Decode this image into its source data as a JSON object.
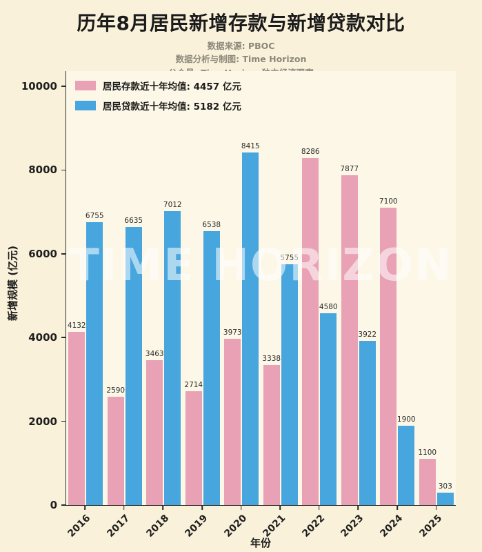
{
  "title": "历年8月居民新增存款与新增贷款对比",
  "subtitle": [
    "数据来源: PBOC",
    "数据分析与制图: Time Horizon",
    "公众号: TimeHorizon独立经济观察"
  ],
  "watermark": "TIME HORIZON",
  "colors": {
    "background": "#FAF1DA",
    "plot_background": "#FCF7E6",
    "axis": "#2a2a2a",
    "deposit_pink": "#E9A1B5",
    "loan_blue": "#47A6DE",
    "watermark_text": "#FFFFFF",
    "subtitle_gray": "#8c887b"
  },
  "chart_data": {
    "type": "bar",
    "title": "历年8月居民新增存款与新增贷款对比",
    "categories": [
      "2016",
      "2017",
      "2018",
      "2019",
      "2020",
      "2021",
      "2022",
      "2023",
      "2024",
      "2025"
    ],
    "series": [
      {
        "key": "deposit",
        "name": "居民存款近十年均值: 4457 亿元",
        "color": "#E9A1B5",
        "values": [
          4132,
          2590,
          3463,
          2714,
          3973,
          3338,
          8286,
          7877,
          7100,
          1100
        ]
      },
      {
        "key": "loan",
        "name": "居民贷款近十年均值: 5182 亿元",
        "color": "#47A6DE",
        "values": [
          6755,
          6635,
          7012,
          6538,
          8415,
          5755,
          4580,
          3922,
          1900,
          303
        ]
      }
    ],
    "xlabel": "年份",
    "ylabel": "新增规模 (亿元)",
    "ylim": [
      0,
      10000
    ],
    "yticks": [
      0,
      2000,
      4000,
      6000,
      8000,
      10000
    ],
    "legend_position": "upper-left",
    "grid": false,
    "bar_value_labels": true
  }
}
